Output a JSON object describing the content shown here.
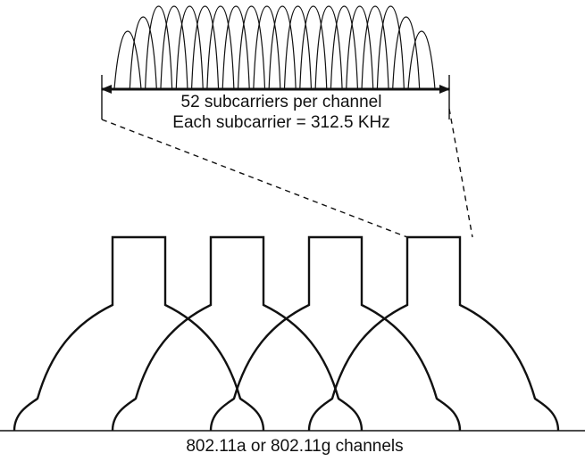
{
  "diagram": {
    "subcarrier_label": "52 subcarriers per channel",
    "subcarrier_width_label": "Each subcarrier = 312.5 KHz",
    "channels_label": "802.11a or 802.11g channels",
    "channel_count": 4,
    "subcarrier_lobes_drawn": 20
  },
  "colors": {
    "stroke": "#111111",
    "background": "#ffffff"
  }
}
